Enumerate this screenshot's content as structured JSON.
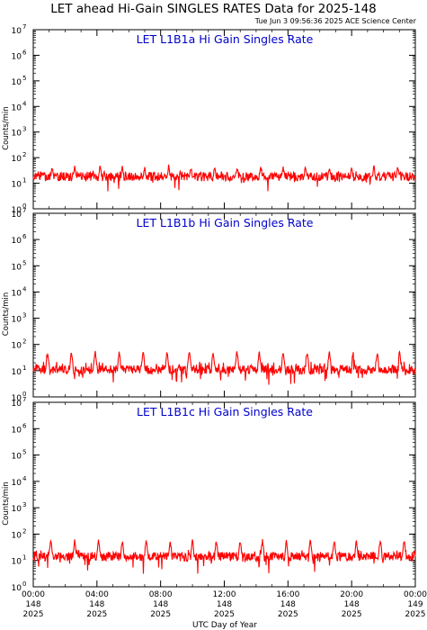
{
  "header": {
    "title": "LET ahead Hi-Gain SINGLES RATES Data for 2025-148",
    "timestamp": "Tue Jun  3 09:56:36 2025 ACE Science Center"
  },
  "colors": {
    "series": "#ff0000",
    "panel_title": "#0000cc",
    "axes": "#000000"
  },
  "chart_data": [
    {
      "type": "line",
      "title": "LET L1B1a Hi Gain Singles Rate",
      "ylabel": "Counts/min",
      "yscale": "log",
      "ylim": [
        1,
        10000000
      ],
      "xlim": [
        0,
        24
      ],
      "grid": false,
      "series": [
        {
          "baseline": 18,
          "spike_hours": [
            1.2,
            2.6,
            4.2,
            5.6,
            7.0,
            8.5,
            9.9,
            11.4,
            12.8,
            14.3,
            15.7,
            17.1,
            18.6,
            20.0,
            21.4,
            22.9
          ],
          "spike_peak": 45,
          "noise_range": [
            10,
            30
          ]
        }
      ]
    },
    {
      "type": "line",
      "title": "LET L1B1b Hi Gain Singles Rate",
      "ylabel": "Counts/min",
      "yscale": "log",
      "ylim": [
        1,
        10000000
      ],
      "xlim": [
        0,
        24
      ],
      "grid": false,
      "series": [
        {
          "baseline": 11,
          "spike_hours": [
            0.9,
            2.4,
            3.9,
            5.4,
            6.9,
            8.4,
            9.8,
            11.3,
            12.8,
            14.2,
            15.7,
            17.2,
            18.6,
            20.1,
            21.6,
            23.0
          ],
          "spike_peak": 50,
          "noise_range": [
            4,
            22
          ]
        }
      ]
    },
    {
      "type": "line",
      "title": "LET L1B1c Hi Gain Singles Rate",
      "ylabel": "Counts/min",
      "yscale": "log",
      "ylim": [
        1,
        10000000
      ],
      "xlim": [
        0,
        24
      ],
      "grid": false,
      "series": [
        {
          "baseline": 14,
          "spike_hours": [
            1.1,
            2.6,
            4.1,
            5.6,
            7.1,
            8.6,
            10.0,
            11.5,
            13.0,
            14.4,
            15.9,
            17.4,
            18.9,
            20.3,
            21.8,
            23.3
          ],
          "spike_peak": 55,
          "noise_range": [
            5,
            25
          ]
        }
      ]
    }
  ],
  "y_tick_labels": [
    {
      "base": "10",
      "exp": "0"
    },
    {
      "base": "10",
      "exp": "1"
    },
    {
      "base": "10",
      "exp": "2"
    },
    {
      "base": "10",
      "exp": "3"
    },
    {
      "base": "10",
      "exp": "4"
    },
    {
      "base": "10",
      "exp": "5"
    },
    {
      "base": "10",
      "exp": "6"
    },
    {
      "base": "10",
      "exp": "7"
    }
  ],
  "x_ticks": [
    {
      "hour": 0,
      "time": "00:00",
      "doy": "148",
      "year": "2025"
    },
    {
      "hour": 4,
      "time": "04:00",
      "doy": "148",
      "year": "2025"
    },
    {
      "hour": 8,
      "time": "08:00",
      "doy": "148",
      "year": "2025"
    },
    {
      "hour": 12,
      "time": "12:00",
      "doy": "148",
      "year": "2025"
    },
    {
      "hour": 16,
      "time": "16:00",
      "doy": "148",
      "year": "2025"
    },
    {
      "hour": 20,
      "time": "20:00",
      "doy": "148",
      "year": "2025"
    },
    {
      "hour": 24,
      "time": "00:00",
      "doy": "149",
      "year": "2025"
    }
  ],
  "xlabel": "UTC Day of Year"
}
